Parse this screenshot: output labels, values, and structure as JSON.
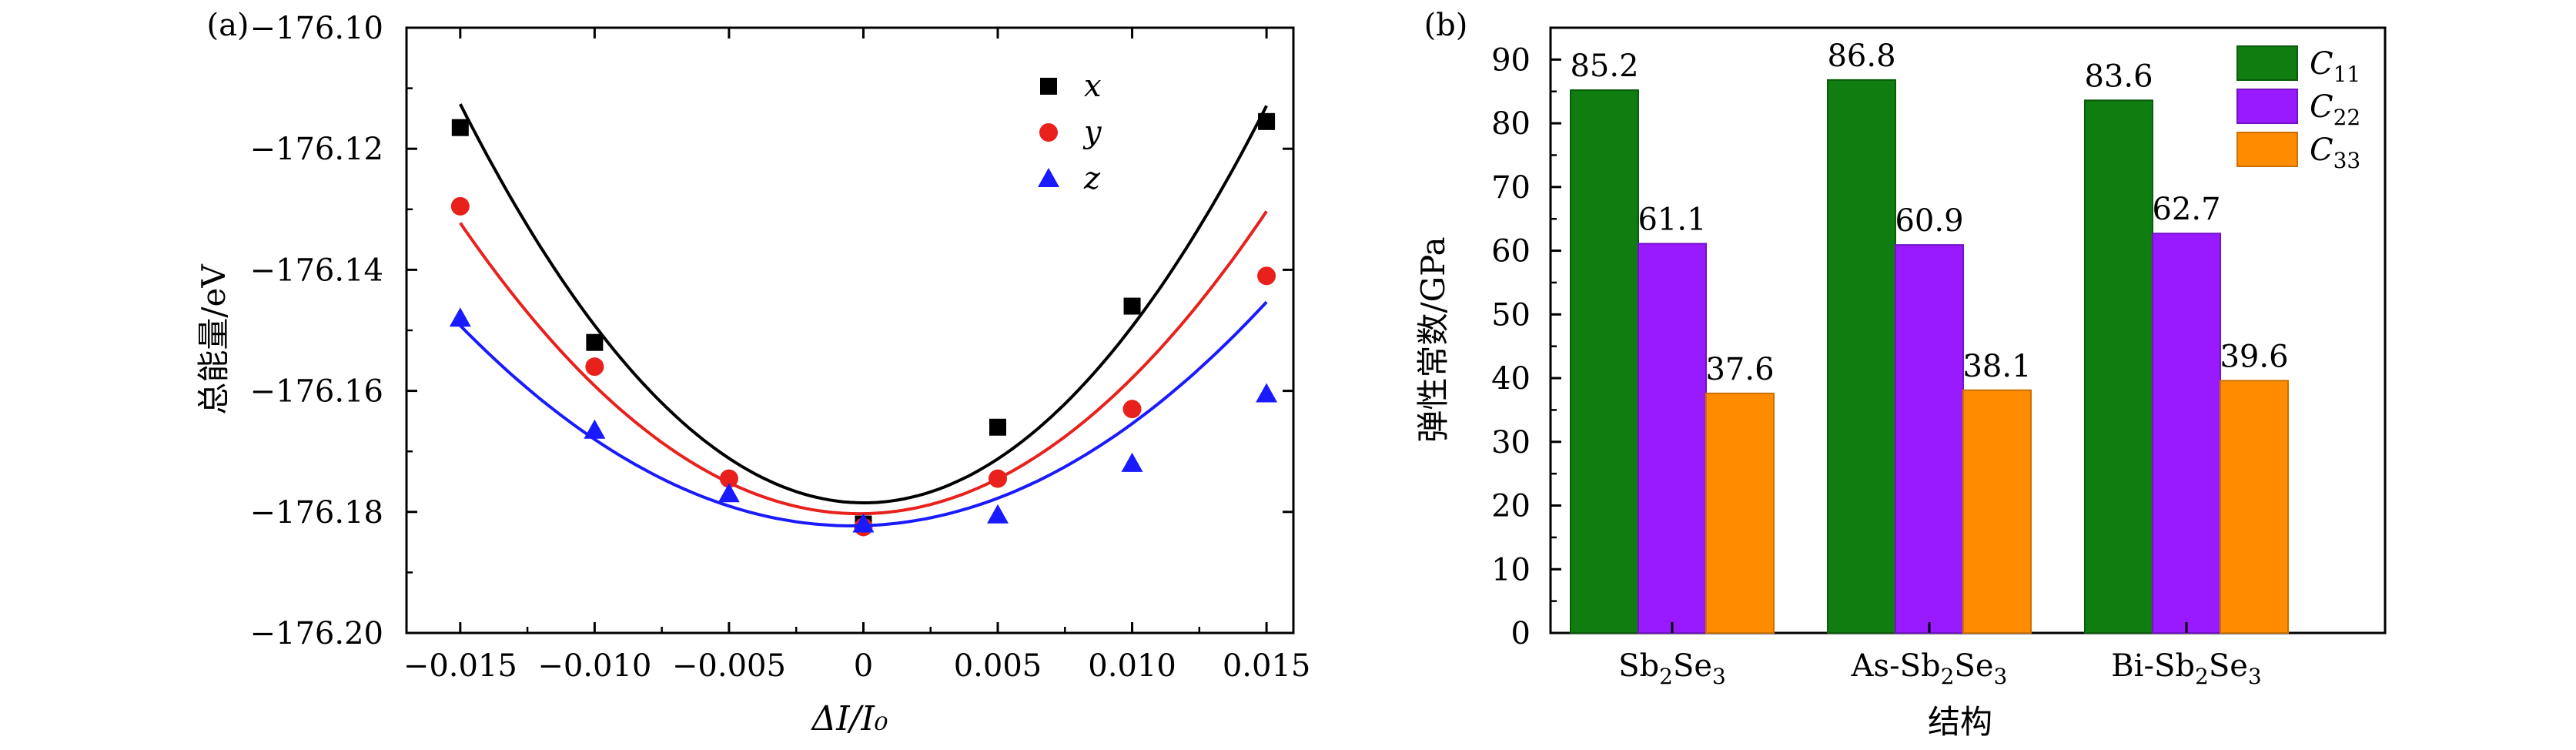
{
  "chart_data": [
    {
      "panel": "(a)",
      "type": "scatter",
      "xlabel": "ΔI/I₀",
      "ylabel": "总能量/eV",
      "xlim": [
        -0.017,
        0.016
      ],
      "ylim": [
        -176.2,
        -176.1
      ],
      "x_ticks": [
        "-0.015",
        "-0.010",
        "-0.005",
        "0",
        "0.005",
        "0.010",
        "0.015"
      ],
      "x_tick_values": [
        -0.015,
        -0.01,
        -0.005,
        0,
        0.005,
        0.01,
        0.015
      ],
      "y_ticks": [
        "-176.10",
        "-176.12",
        "-176.14",
        "-176.16",
        "-176.18",
        "-176.20"
      ],
      "y_tick_values": [
        -176.1,
        -176.12,
        -176.14,
        -176.16,
        -176.18,
        -176.2
      ],
      "legend_position": "top-right",
      "series": [
        {
          "name": "x",
          "color": "#000000",
          "marker": "square",
          "points": [
            [
              -0.015,
              -176.1165
            ],
            [
              -0.01,
              -176.152
            ],
            [
              0,
              -176.182
            ],
            [
              0.005,
              -176.166
            ],
            [
              0.01,
              -176.146
            ],
            [
              0.015,
              -176.1155
            ]
          ],
          "fit": {
            "a": 292.2,
            "b": 0.0167,
            "c": -176.1785
          }
        },
        {
          "name": "y",
          "color": "#e8211c",
          "marker": "circle",
          "points": [
            [
              -0.015,
              -176.1295
            ],
            [
              -0.01,
              -176.156
            ],
            [
              -0.005,
              -176.1745
            ],
            [
              0,
              -176.1825
            ],
            [
              0.005,
              -176.1745
            ],
            [
              0.01,
              -176.163
            ],
            [
              0.015,
              -176.141
            ]
          ],
          "fit": {
            "a": 217.8,
            "b": -0.1467,
            "c": -176.1803
          }
        },
        {
          "name": "z",
          "color": "#1a1aff",
          "marker": "triangle",
          "points": [
            [
              -0.015,
              -176.148
            ],
            [
              -0.01,
              -176.1665
            ],
            [
              -0.005,
              -176.177
            ],
            [
              0,
              -176.182
            ],
            [
              0.005,
              -176.1805
            ],
            [
              0.01,
              -176.172
            ],
            [
              0.015,
              -176.1605
            ]
          ],
          "fit": {
            "a": 155.6,
            "b": -0.4167,
            "c": -176.1823
          }
        }
      ]
    },
    {
      "panel": "(b)",
      "type": "bar",
      "xlabel": "结构",
      "ylabel": "弹性常数/GPa",
      "ylim": [
        0,
        95
      ],
      "y_ticks": [
        "0",
        "10",
        "20",
        "30",
        "40",
        "50",
        "60",
        "70",
        "80",
        "90"
      ],
      "y_tick_values": [
        0,
        10,
        20,
        30,
        40,
        50,
        60,
        70,
        80,
        90
      ],
      "categories": [
        {
          "prefix": "",
          "base": "Sb",
          "sub1": "2",
          "mid": "Se",
          "sub2": "3"
        },
        {
          "prefix": "As-",
          "base": "Sb",
          "sub1": "2",
          "mid": "Se",
          "sub2": "3"
        },
        {
          "prefix": "Bi-",
          "base": "Sb",
          "sub1": "2",
          "mid": "Se",
          "sub2": "3"
        }
      ],
      "legend_position": "top-right",
      "series": [
        {
          "name": "C",
          "sub": "11",
          "color": "#0f7d0f",
          "edge": "#0a5c0a",
          "values": [
            85.2,
            86.8,
            83.6
          ],
          "labels": [
            "85.2",
            "86.8",
            "83.6"
          ]
        },
        {
          "name": "C",
          "sub": "22",
          "color": "#9a1aff",
          "edge": "#7311c4",
          "values": [
            61.1,
            60.9,
            62.7
          ],
          "labels": [
            "61.1",
            "60.9",
            "62.7"
          ]
        },
        {
          "name": "C",
          "sub": "33",
          "color": "#ff8c00",
          "edge": "#cc7000",
          "values": [
            37.6,
            38.1,
            39.6
          ],
          "labels": [
            "37.6",
            "38.1",
            "39.6"
          ]
        }
      ]
    }
  ]
}
